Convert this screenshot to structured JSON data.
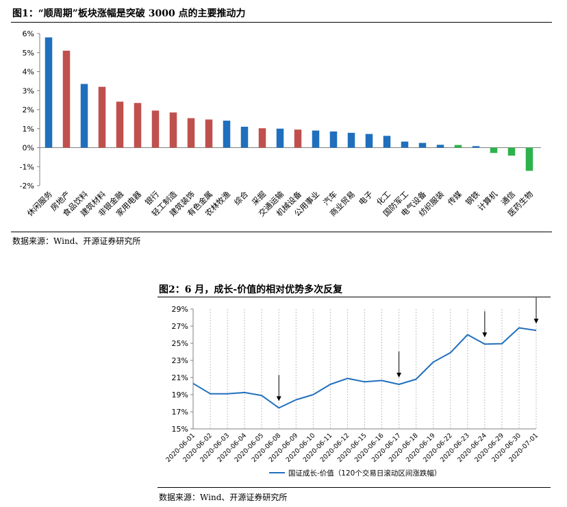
{
  "figure1": {
    "title": "图1：“顺周期”板块涨幅是突破 3000 点的主要推动力",
    "source": "数据来源：Wind、开源证券研究所"
  },
  "figure2": {
    "title": "图2：6 月，成长-价值的相对优势多次反复",
    "source": "数据来源：Wind、开源证券研究所"
  },
  "colors": {
    "blue": "#1f6fbd",
    "red": "#c0504d",
    "green": "#2eb24b",
    "line": "#1f6fbd"
  },
  "chart_data": [
    {
      "type": "bar",
      "categories": [
        "休闲服务",
        "房地产",
        "食品饮料",
        "建筑材料",
        "非银金融",
        "家用电器",
        "银行",
        "轻工制造",
        "建筑装饰",
        "有色金属",
        "农林牧渔",
        "综合",
        "采掘",
        "交通运输",
        "机械设备",
        "公用事业",
        "汽车",
        "商业贸易",
        "电子",
        "化工",
        "国防军工",
        "电气设备",
        "纺织服装",
        "传媒",
        "钢铁",
        "计算机",
        "通信",
        "医药生物"
      ],
      "values": [
        5.8,
        5.1,
        3.35,
        3.2,
        2.42,
        2.35,
        1.95,
        1.85,
        1.55,
        1.48,
        1.42,
        1.1,
        1.02,
        1.0,
        0.95,
        0.9,
        0.85,
        0.78,
        0.72,
        0.62,
        0.32,
        0.25,
        0.15,
        0.14,
        0.08,
        -0.28,
        -0.42,
        -1.22
      ],
      "bar_colors": [
        "blue",
        "red",
        "blue",
        "red",
        "red",
        "red",
        "red",
        "red",
        "red",
        "red",
        "blue",
        "blue",
        "red",
        "blue",
        "red",
        "blue",
        "blue",
        "blue",
        "blue",
        "blue",
        "blue",
        "blue",
        "blue",
        "green",
        "blue",
        "green",
        "green",
        "green"
      ],
      "ylim": [
        -2,
        6
      ],
      "yticks": [
        "-2%",
        "-1%",
        "0%",
        "1%",
        "2%",
        "3%",
        "4%",
        "5%",
        "6%"
      ],
      "ytick_values": [
        -2,
        -1,
        0,
        1,
        2,
        3,
        4,
        5,
        6
      ]
    },
    {
      "type": "line",
      "x": [
        "2020-06-01",
        "2020-06-02",
        "2020-06-03",
        "2020-06-04",
        "2020-06-05",
        "2020-06-08",
        "2020-06-09",
        "2020-06-10",
        "2020-06-11",
        "2020-06-12",
        "2020-06-15",
        "2020-06-16",
        "2020-06-17",
        "2020-06-18",
        "2020-06-19",
        "2020-06-22",
        "2020-06-23",
        "2020-06-24",
        "2020-06-29",
        "2020-06-30",
        "2020-07-01"
      ],
      "series": [
        {
          "name": "国证成长-价值（120个交易日滚动区间涨跌幅）",
          "values": [
            20.3,
            19.1,
            19.1,
            19.25,
            18.9,
            17.45,
            18.4,
            19.0,
            20.2,
            20.9,
            20.5,
            20.65,
            20.2,
            20.8,
            22.8,
            23.9,
            26.0,
            24.9,
            24.95,
            26.8,
            26.5
          ]
        }
      ],
      "ylim": [
        15,
        29
      ],
      "yticks": [
        "15%",
        "17%",
        "19%",
        "21%",
        "23%",
        "25%",
        "27%",
        "29%"
      ],
      "ytick_values": [
        15,
        17,
        19,
        21,
        23,
        25,
        27,
        29
      ],
      "vertical_grid": true,
      "arrow_dates": [
        "2020-06-08",
        "2020-06-17",
        "2020-06-24",
        "2020-07-01"
      ]
    }
  ]
}
